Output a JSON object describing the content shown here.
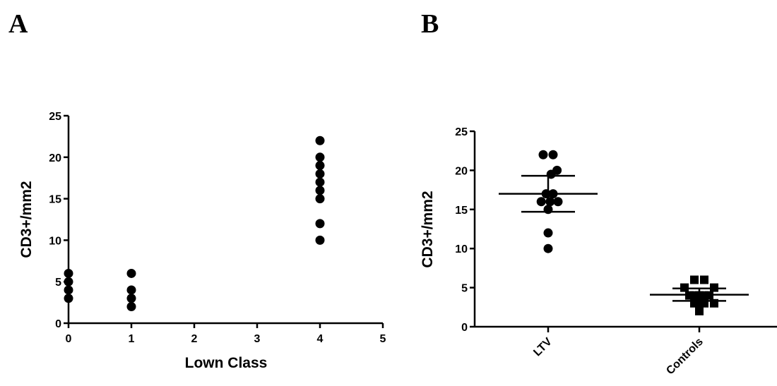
{
  "chart_data": [
    {
      "panel": "A",
      "type": "scatter",
      "xlabel": "Lown Class",
      "ylabel": "CD3+/mm2",
      "xlim": [
        0,
        5
      ],
      "ylim": [
        0,
        25
      ],
      "xticks": [
        0,
        1,
        2,
        3,
        4,
        5
      ],
      "yticks": [
        0,
        5,
        10,
        15,
        20,
        25
      ],
      "grid": false,
      "points": [
        {
          "x": 0,
          "y": 3
        },
        {
          "x": 0,
          "y": 4
        },
        {
          "x": 0,
          "y": 5
        },
        {
          "x": 0,
          "y": 6
        },
        {
          "x": 1,
          "y": 2
        },
        {
          "x": 1,
          "y": 3
        },
        {
          "x": 1,
          "y": 4
        },
        {
          "x": 1,
          "y": 6
        },
        {
          "x": 4,
          "y": 10
        },
        {
          "x": 4,
          "y": 12
        },
        {
          "x": 4,
          "y": 15
        },
        {
          "x": 4,
          "y": 16
        },
        {
          "x": 4,
          "y": 17
        },
        {
          "x": 4,
          "y": 18
        },
        {
          "x": 4,
          "y": 19
        },
        {
          "x": 4,
          "y": 20
        },
        {
          "x": 4,
          "y": 22
        }
      ]
    },
    {
      "panel": "B",
      "type": "scatter",
      "xlabel": "",
      "ylabel": "CD3+/mm2",
      "ylim": [
        0,
        25
      ],
      "yticks": [
        0,
        5,
        10,
        15,
        20,
        25
      ],
      "grid": false,
      "categories": [
        "LTV",
        "Controls"
      ],
      "series": [
        {
          "category": "LTV",
          "marker": "circle",
          "mean": 17.0,
          "sd_low": 14.7,
          "sd_high": 19.3,
          "points": [
            {
              "offset": -0.5,
              "y": 22
            },
            {
              "offset": 0.5,
              "y": 22
            },
            {
              "offset": 0.9,
              "y": 20
            },
            {
              "offset": 0.3,
              "y": 19.5
            },
            {
              "offset": -0.2,
              "y": 17
            },
            {
              "offset": 0.5,
              "y": 17
            },
            {
              "offset": -0.7,
              "y": 16
            },
            {
              "offset": 0.2,
              "y": 16
            },
            {
              "offset": 1.0,
              "y": 16
            },
            {
              "offset": 0.0,
              "y": 15
            },
            {
              "offset": 0.0,
              "y": 12
            },
            {
              "offset": 0.0,
              "y": 10
            }
          ]
        },
        {
          "category": "Controls",
          "marker": "square",
          "mean": 4.1,
          "sd_low": 3.3,
          "sd_high": 4.9,
          "points": [
            {
              "offset": -1.5,
              "y": 5
            },
            {
              "offset": -0.5,
              "y": 6
            },
            {
              "offset": 0.5,
              "y": 6
            },
            {
              "offset": 1.5,
              "y": 5
            },
            {
              "offset": -1.0,
              "y": 4
            },
            {
              "offset": -0.5,
              "y": 4
            },
            {
              "offset": 0.0,
              "y": 4
            },
            {
              "offset": 0.5,
              "y": 4
            },
            {
              "offset": 1.0,
              "y": 4
            },
            {
              "offset": -0.5,
              "y": 3
            },
            {
              "offset": 0.0,
              "y": 3
            },
            {
              "offset": 0.5,
              "y": 3
            },
            {
              "offset": 1.5,
              "y": 3
            },
            {
              "offset": 0.0,
              "y": 2
            }
          ]
        }
      ]
    }
  ]
}
